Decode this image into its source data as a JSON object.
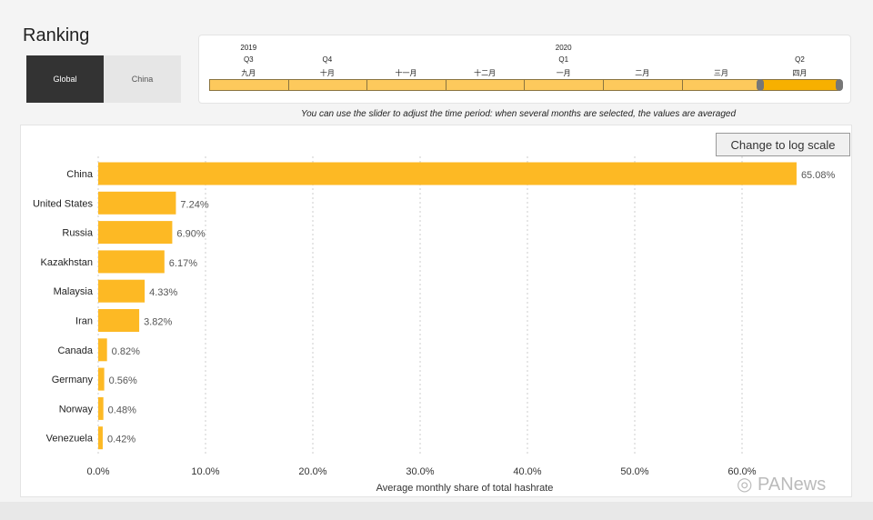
{
  "title": "Ranking",
  "toggle": [
    "Global",
    "China"
  ],
  "slider": {
    "years": [
      {
        "label": "2019",
        "col": 0
      },
      {
        "label": "2020",
        "col": 4
      }
    ],
    "quarters": [
      {
        "label": "Q3",
        "col": 0
      },
      {
        "label": "Q4",
        "col": 1
      },
      {
        "label": "Q1",
        "col": 4
      },
      {
        "label": "Q2",
        "col": 7
      }
    ],
    "months": [
      "九月",
      "十月",
      "十一月",
      "十二月",
      "一月",
      "二月",
      "三月",
      "四月"
    ],
    "selected": [
      "四月"
    ]
  },
  "hint": "You can use the slider to adjust the time period: when several months are selected, the values are averaged",
  "log_button": "Change to log scale",
  "watermark": "PANews",
  "colors": {
    "bar": "#fdb924",
    "selected": "#f7b000",
    "segment": "#fdc95c"
  },
  "chart_data": {
    "type": "bar",
    "orientation": "horizontal",
    "categories": [
      "China",
      "United States",
      "Russia",
      "Kazakhstan",
      "Malaysia",
      "Iran",
      "Canada",
      "Germany",
      "Norway",
      "Venezuela"
    ],
    "values": [
      65.08,
      7.24,
      6.9,
      6.17,
      4.33,
      3.82,
      0.82,
      0.56,
      0.48,
      0.42
    ],
    "data_labels": [
      "65.08%",
      "7.24%",
      "6.90%",
      "6.17%",
      "4.33%",
      "3.82%",
      "0.82%",
      "0.56%",
      "0.48%",
      "0.42%"
    ],
    "xlabel": "Average monthly share of total hashrate",
    "xticks": [
      "0.0%",
      "10.0%",
      "20.0%",
      "30.0%",
      "40.0%",
      "50.0%",
      "60.0%"
    ],
    "xlim": [
      0,
      70
    ],
    "grid": "vertical dotted"
  }
}
